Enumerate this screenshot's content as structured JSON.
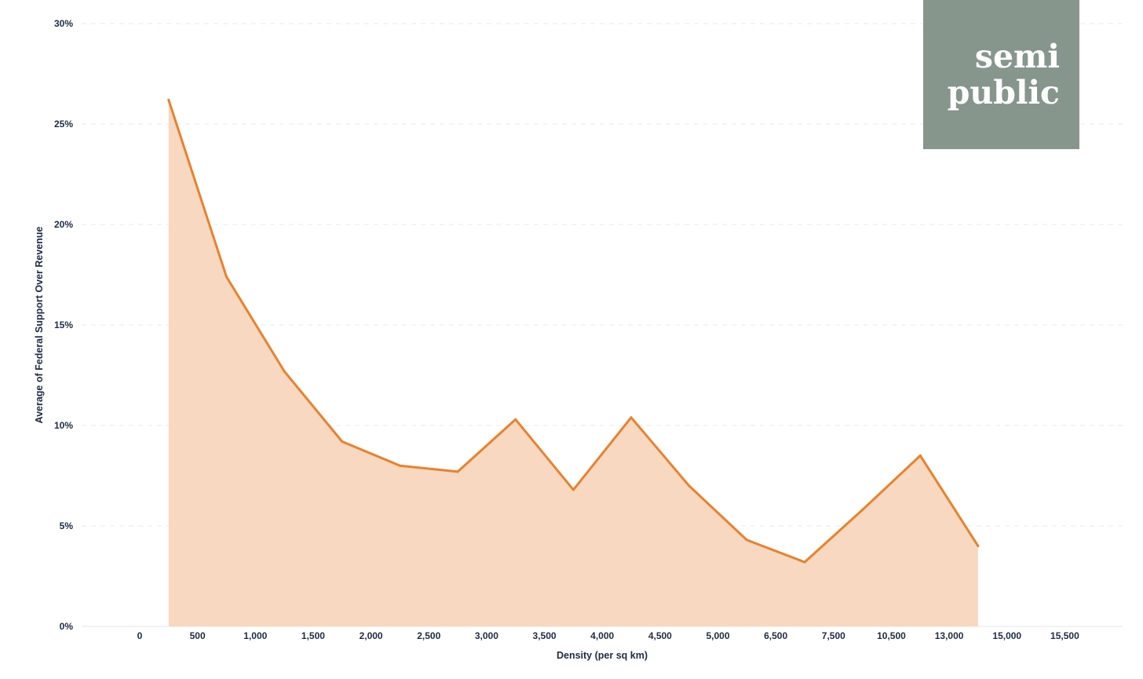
{
  "chart_data": {
    "type": "area",
    "title": "",
    "xlabel": "Density (per sq km)",
    "ylabel": "Average of Federal Support Over Revenue",
    "x_ticks": [
      "0",
      "500",
      "1,000",
      "1,500",
      "2,000",
      "2,500",
      "3,000",
      "3,500",
      "4,000",
      "4,500",
      "5,000",
      "6,500",
      "7,500",
      "10,500",
      "13,000",
      "15,000",
      "15,500"
    ],
    "y_ticks": [
      "0%",
      "5%",
      "10%",
      "15%",
      "20%",
      "25%",
      "30%"
    ],
    "ylim": [
      0,
      30
    ],
    "y_unit": "%",
    "grid": "horizontal dashed",
    "legend": "none",
    "series": [
      {
        "x": [
          250,
          750,
          1250,
          1750,
          2250,
          2750,
          3250,
          3750,
          4250,
          4750,
          5750,
          7000,
          9000,
          11750,
          14000
        ],
        "values": [
          26.2,
          17.4,
          12.7,
          9.2,
          8.0,
          7.7,
          10.3,
          6.8,
          10.4,
          7.0,
          4.3,
          3.2,
          5.8,
          8.5,
          4.0
        ],
        "line_color": "#e8822e",
        "fill_color": "#f8d8c0"
      }
    ]
  },
  "logo": {
    "line1": "semi",
    "line2": "public",
    "background": "#87968d"
  }
}
